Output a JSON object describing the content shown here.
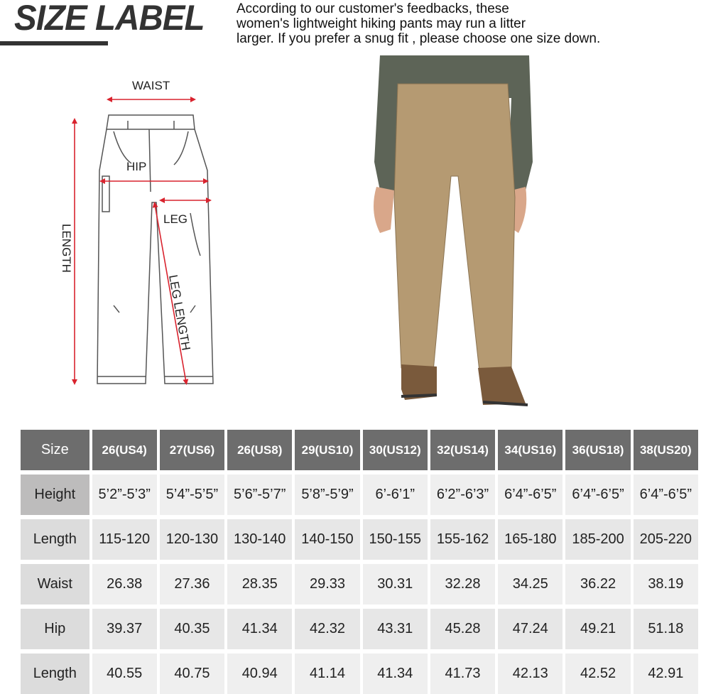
{
  "header": {
    "title": "SIZE LABEL",
    "note_lines": [
      "According to our customer's feedbacks, these",
      "women's lightweight hiking pants may run a litter",
      "larger. If you prefer a snug fit , please choose one size down."
    ]
  },
  "diagram": {
    "labels": {
      "waist": "WAIST",
      "hip": "HIP",
      "leg": "LEG",
      "length": "LENGTH",
      "leg_length": "LEG LENGTH"
    },
    "arrow_color": "#d9232e"
  },
  "photo": {
    "pants_color": "#b59a72"
  },
  "table": {
    "header": [
      "Size",
      "26(US4)",
      "27(US6)",
      "26(US8)",
      "29(US10)",
      "30(US12)",
      "32(US14)",
      "34(US16)",
      "36(US18)",
      "38(US20)"
    ],
    "rows": [
      {
        "label": "Height",
        "values": [
          "5’2”-5’3”",
          "5’4”-5’5”",
          "5’6”-5’7”",
          "5’8”-5’9”",
          "6’-6’1”",
          "6’2”-6’3”",
          "6’4”-6’5”",
          "6’4”-6’5”",
          "6’4”-6’5”"
        ]
      },
      {
        "label": "Length",
        "values": [
          "115-120",
          "120-130",
          "130-140",
          "140-150",
          "150-155",
          "155-162",
          "165-180",
          "185-200",
          "205-220"
        ]
      },
      {
        "label": "Waist",
        "values": [
          "26.38",
          "27.36",
          "28.35",
          "29.33",
          "30.31",
          "32.28",
          "34.25",
          "36.22",
          "38.19"
        ]
      },
      {
        "label": "Hip",
        "values": [
          "39.37",
          "40.35",
          "41.34",
          "42.32",
          "43.31",
          "45.28",
          "47.24",
          "49.21",
          "51.18"
        ]
      },
      {
        "label": "Length",
        "values": [
          "40.55",
          "40.75",
          "40.94",
          "41.14",
          "41.34",
          "41.73",
          "42.13",
          "42.52",
          "42.91"
        ]
      }
    ]
  }
}
